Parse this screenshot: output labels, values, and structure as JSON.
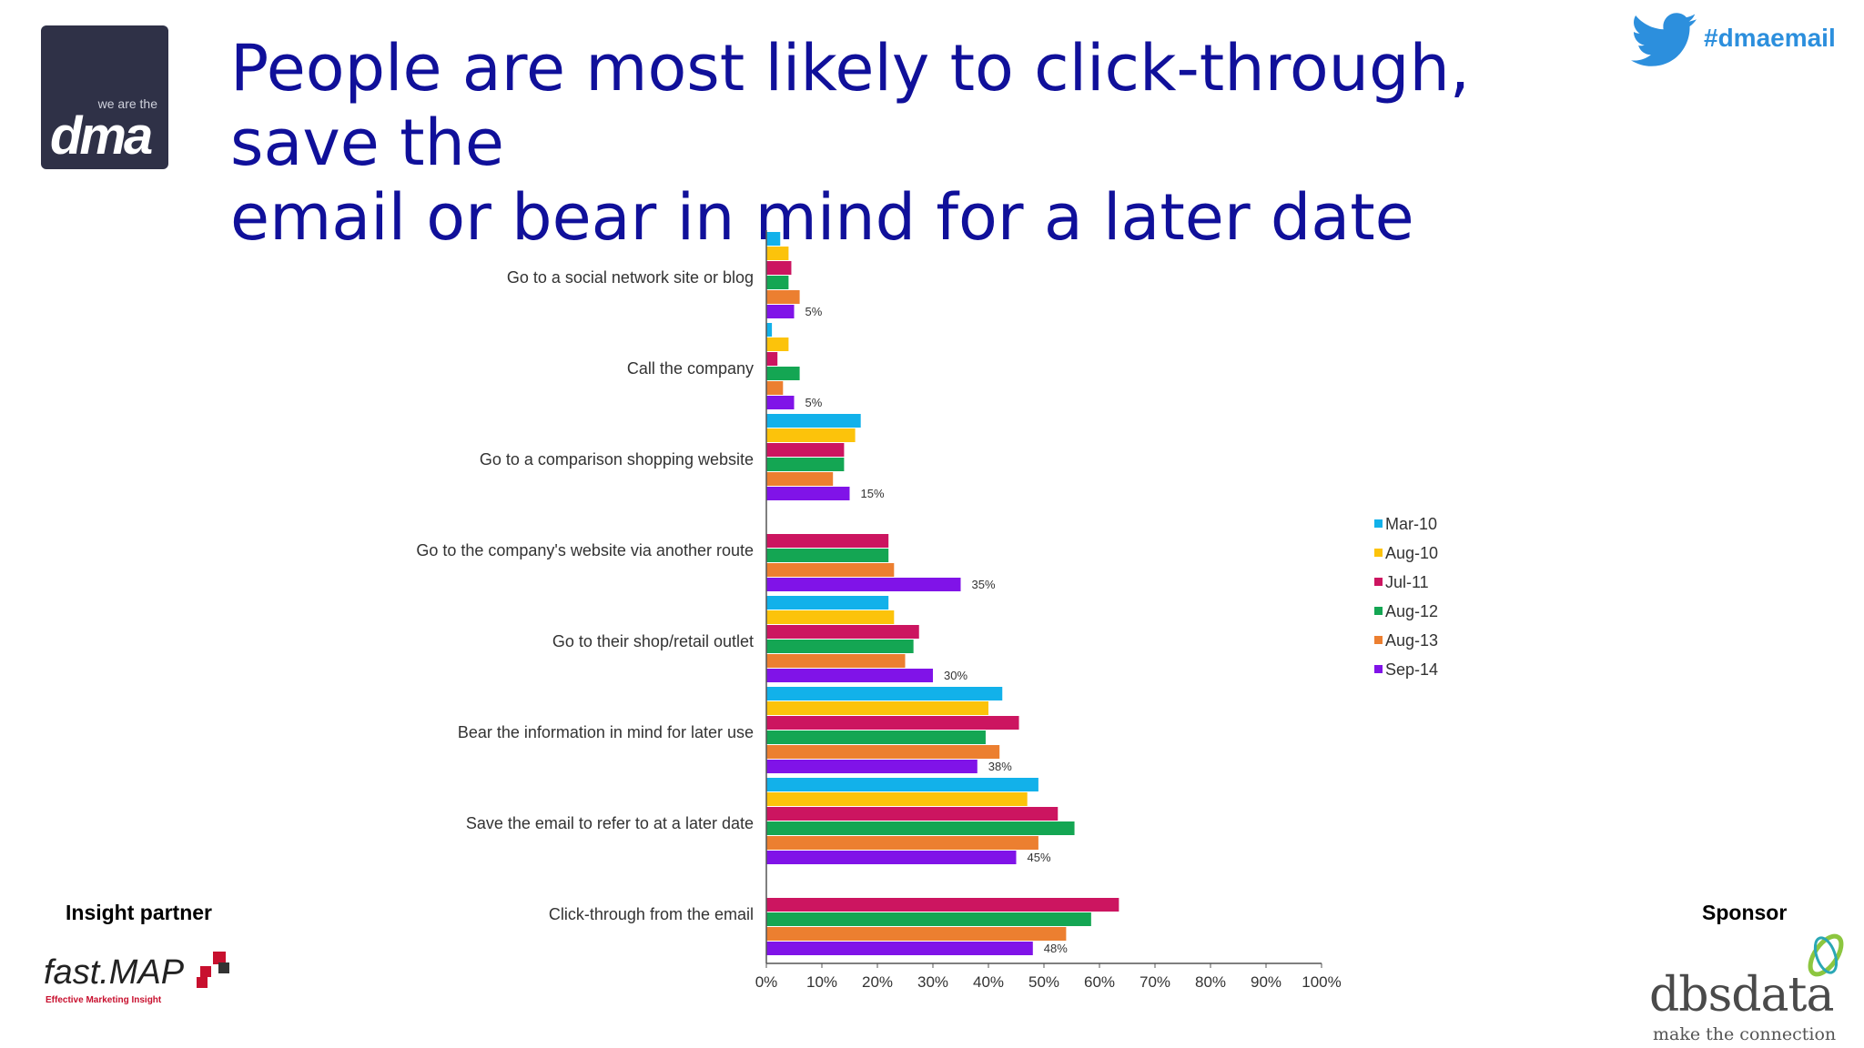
{
  "header": {
    "title_line1": "People are most likely to click-through, save the",
    "title_line2": "email or bear in mind for a later date",
    "hashtag": "#dmaemail",
    "logo_small": "we are the",
    "logo_big": "dma"
  },
  "footer": {
    "insight_partner": "Insight partner",
    "sponsor": "Sponsor",
    "fastmap_word": "fast.MAP",
    "fastmap_sub": "Effective Marketing Insight",
    "dbs_word": "dbsdata",
    "dbs_sub": "make the connection"
  },
  "colors": {
    "Mar-10": "#12b1ea",
    "Aug-10": "#fcc30b",
    "Jul-11": "#cc1560",
    "Aug-12": "#14a653",
    "Aug-13": "#ec7f30",
    "Sep-14": "#8013e8"
  },
  "chart_data": {
    "type": "bar",
    "orientation": "horizontal",
    "categories": [
      "Go to a social network site or blog",
      "Call the company",
      "Go to a comparison shopping website",
      "Go to the company's website via another route",
      "Go to their shop/retail outlet",
      "Bear the information in mind for later use",
      "Save the email to refer to at a later date",
      "Click-through from the email"
    ],
    "series": [
      {
        "name": "Mar-10",
        "values": [
          2.5,
          1,
          17,
          null,
          22,
          42.5,
          49,
          null
        ]
      },
      {
        "name": "Aug-10",
        "values": [
          4,
          4,
          16,
          null,
          23,
          40,
          47,
          null
        ]
      },
      {
        "name": "Jul-11",
        "values": [
          4.5,
          2,
          14,
          22,
          27.5,
          45.5,
          52.5,
          63.5
        ]
      },
      {
        "name": "Aug-12",
        "values": [
          4,
          6,
          14,
          22,
          26.5,
          39.5,
          55.5,
          58.5
        ]
      },
      {
        "name": "Aug-13",
        "values": [
          6,
          3,
          12,
          23,
          25,
          42,
          49,
          54
        ]
      },
      {
        "name": "Sep-14",
        "values": [
          5,
          5,
          15,
          35,
          30,
          38,
          45,
          48
        ]
      }
    ],
    "data_labels": [
      "5%",
      "5%",
      "15%",
      "35%",
      "30%",
      "38%",
      "45%",
      "48%"
    ],
    "x_ticks": [
      "0%",
      "10%",
      "20%",
      "30%",
      "40%",
      "50%",
      "60%",
      "70%",
      "80%",
      "90%",
      "100%"
    ],
    "xlim": [
      0,
      100
    ],
    "legend": [
      "Mar-10",
      "Aug-10",
      "Jul-11",
      "Aug-12",
      "Aug-13",
      "Sep-14"
    ],
    "legend_position": "right",
    "grid": false
  }
}
